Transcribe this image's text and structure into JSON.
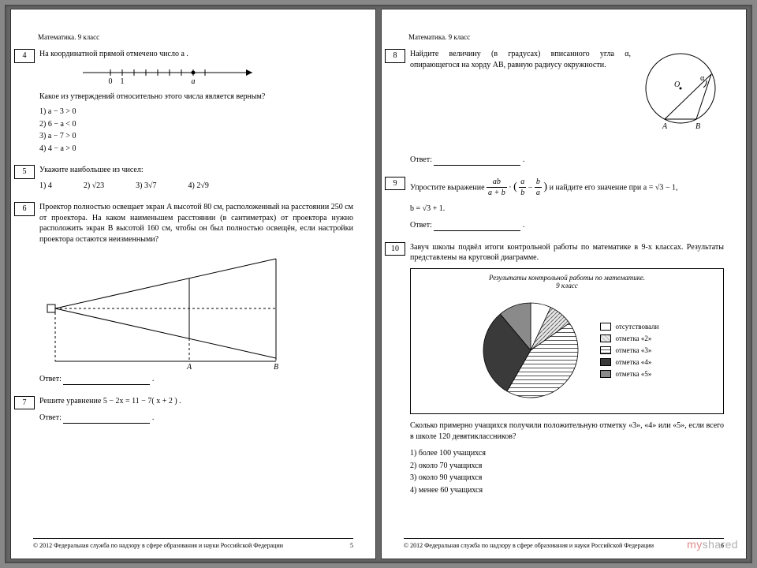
{
  "header": "Математика. 9 класс",
  "copyright": "© 2012  Федеральная служба по надзору в сфере образования и науки Российской Федерации",
  "page_left_num": "5",
  "page_right_num": "6",
  "watermark_a": "my",
  "watermark_b": "shared",
  "q4": {
    "num": "4",
    "text1": "На координатной прямой отмечено число  a .",
    "text2": "Какое из утверждений относительно этого числа является верным?",
    "opts": [
      "1)   a − 3 > 0",
      "2)   6 − a < 0",
      "3)   a − 7 > 0",
      "4)   4 − a > 0"
    ],
    "numberline": {
      "label0": "0",
      "label1": "1",
      "labela": "a"
    }
  },
  "q5": {
    "num": "5",
    "text": "Укажите наибольшее из чисел:",
    "opts": [
      "1)   4",
      "2)   √23",
      "3)   3√7",
      "4)   2√9"
    ]
  },
  "q6": {
    "num": "6",
    "text": "Проектор полностью освещает экран A высотой 80 см, расположенный на расстоянии 250 см от проектора. На каком наименьшем расстоянии (в сантиметрах) от проектора нужно расположить экран B высотой 160 см, чтобы он был полностью освещён, если настройки проектора остаются неизменными?",
    "labelA": "A",
    "labelB": "B",
    "answer_label": "Ответ: "
  },
  "q7": {
    "num": "7",
    "text": "Решите уравнение 5 − 2x = 11 − 7( x + 2 ) .",
    "answer_label": "Ответ: "
  },
  "q8": {
    "num": "8",
    "text": "Найдите величину (в градусах) вписанного угла α, опирающегося на хорду AB, равную радиусу окружности.",
    "labelO": "O",
    "labelA": "A",
    "labelB": "B",
    "labelAlpha": "α",
    "answer_label": "Ответ: "
  },
  "q9": {
    "num": "9",
    "text_a": "Упростите выражение ",
    "text_b": " и найдите его значение при a = √3 − 1,",
    "text_c": "b = √3 + 1.",
    "answer_label": "Ответ: "
  },
  "q10": {
    "num": "10",
    "text1": "Завуч школы подвёл итоги контрольной работы по математике в 9-х классах. Результаты представлены на круговой диаграмме.",
    "chart_title1": "Результаты контрольной работы по математике.",
    "chart_title2": "9 класс",
    "legend": [
      "отсутствовали",
      "отметка «2»",
      "отметка «3»",
      "отметка «4»",
      "отметка «5»"
    ],
    "pie": {
      "slices": [
        {
          "start": -90,
          "sweep": 25,
          "fill": "#ffffff",
          "pattern": "none"
        },
        {
          "start": -65,
          "sweep": 30,
          "fill": "#e8e8e8",
          "pattern": "diag"
        },
        {
          "start": -35,
          "sweep": 155,
          "fill": "#ffffff",
          "pattern": "horiz"
        },
        {
          "start": 120,
          "sweep": 110,
          "fill": "#3a3a3a",
          "pattern": "none"
        },
        {
          "start": 230,
          "sweep": 40,
          "fill": "#8a8a8a",
          "pattern": "none"
        }
      ],
      "swatch_fills": [
        "#ffffff",
        "#cfcfcf",
        "url(#phz)",
        "#3a3a3a",
        "#8a8a8a"
      ]
    },
    "text2": "Сколько примерно учащихся получили положительную отметку «3», «4» или «5», если всего в школе 120 девятиклассников?",
    "opts": [
      "1)   более 100 учащихся",
      "2)   около 70 учащихся",
      "3)   около 90 учащихся",
      "4)   менее 60 учащихся"
    ]
  }
}
